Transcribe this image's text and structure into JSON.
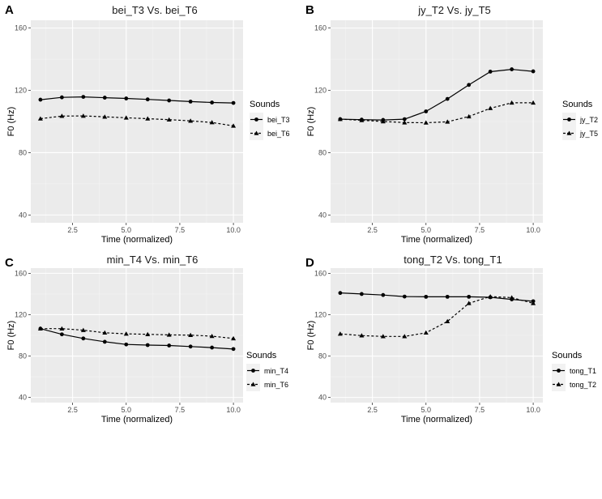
{
  "chart_data": [
    {
      "type": "line",
      "panel_label": "A",
      "title": "bei_T3 Vs. bei_T6",
      "xlabel": "Time (normalized)",
      "ylabel": "F0 (Hz)",
      "xlim": [
        0.55,
        10.45
      ],
      "ylim": [
        35,
        165
      ],
      "xticks": [
        2.5,
        5.0,
        7.5,
        10.0
      ],
      "xtick_labels": [
        "2.5",
        "5.0",
        "7.5",
        "10.0"
      ],
      "yticks": [
        40,
        80,
        120,
        160
      ],
      "ytick_labels": [
        "40",
        "80",
        "120",
        "160"
      ],
      "legend_title": "Sounds",
      "x": [
        1,
        2,
        3,
        4,
        5,
        6,
        7,
        8,
        9,
        10
      ],
      "series": [
        {
          "name": "bei_T3",
          "style": "solid",
          "marker": "circle",
          "values": [
            114,
            115.5,
            115.8,
            115.3,
            114.8,
            114.2,
            113.5,
            112.8,
            112.2,
            111.9
          ]
        },
        {
          "name": "bei_T6",
          "style": "dashed",
          "marker": "triangle",
          "values": [
            101.8,
            103.5,
            103.6,
            103,
            102.4,
            101.8,
            101.2,
            100.4,
            99.4,
            97.2
          ]
        }
      ]
    },
    {
      "type": "line",
      "panel_label": "B",
      "title": "jy_T2 Vs. jy_T5",
      "xlabel": "Time (normalized)",
      "ylabel": "F0 (Hz)",
      "xlim": [
        0.55,
        10.45
      ],
      "ylim": [
        35,
        165
      ],
      "xticks": [
        2.5,
        5.0,
        7.5,
        10.0
      ],
      "xtick_labels": [
        "2.5",
        "5.0",
        "7.5",
        "10.0"
      ],
      "yticks": [
        40,
        80,
        120,
        160
      ],
      "ytick_labels": [
        "40",
        "80",
        "120",
        "160"
      ],
      "legend_title": "Sounds",
      "x": [
        1,
        2,
        3,
        4,
        5,
        6,
        7,
        8,
        9,
        10
      ],
      "series": [
        {
          "name": "jy_T2",
          "style": "solid",
          "marker": "circle",
          "values": [
            101.5,
            101.2,
            101,
            101.5,
            106.5,
            114.5,
            123.5,
            132,
            133.5,
            132.2
          ]
        },
        {
          "name": "jy_T5",
          "style": "dashed",
          "marker": "triangle",
          "values": [
            101.5,
            100.8,
            100,
            99.3,
            99.2,
            99.8,
            103.2,
            108.5,
            112,
            112
          ]
        }
      ]
    },
    {
      "type": "line",
      "panel_label": "C",
      "title": "min_T4 Vs. min_T6",
      "xlabel": "Time (normalized)",
      "ylabel": "F0 (Hz)",
      "xlim": [
        0.55,
        10.45
      ],
      "ylim": [
        35,
        165
      ],
      "xticks": [
        2.5,
        5.0,
        7.5,
        10.0
      ],
      "xtick_labels": [
        "2.5",
        "5.0",
        "7.5",
        "10.0"
      ],
      "yticks": [
        40,
        80,
        120,
        160
      ],
      "ytick_labels": [
        "40",
        "80",
        "120",
        "160"
      ],
      "legend_title": "Sounds",
      "x": [
        1,
        2,
        3,
        4,
        5,
        6,
        7,
        8,
        9,
        10
      ],
      "series": [
        {
          "name": "min_T4",
          "style": "solid",
          "marker": "circle",
          "values": [
            106.5,
            101,
            97,
            93.8,
            91.2,
            90.6,
            90.2,
            89.2,
            88.2,
            86.8
          ]
        },
        {
          "name": "min_T6",
          "style": "dashed",
          "marker": "triangle",
          "values": [
            106.5,
            106.5,
            105,
            102.5,
            101.5,
            101,
            100.5,
            100.2,
            99.2,
            97
          ]
        }
      ]
    },
    {
      "type": "line",
      "panel_label": "D",
      "title": "tong_T2 Vs. tong_T1",
      "xlabel": "Time (normalized)",
      "ylabel": "F0 (Hz)",
      "xlim": [
        0.55,
        10.45
      ],
      "ylim": [
        35,
        165
      ],
      "xticks": [
        2.5,
        5.0,
        7.5,
        10.0
      ],
      "xtick_labels": [
        "2.5",
        "5.0",
        "7.5",
        "10.0"
      ],
      "yticks": [
        40,
        80,
        120,
        160
      ],
      "ytick_labels": [
        "40",
        "80",
        "120",
        "160"
      ],
      "legend_title": "Sounds",
      "x": [
        1,
        2,
        3,
        4,
        5,
        6,
        7,
        8,
        9,
        10
      ],
      "series": [
        {
          "name": "tong_T1",
          "style": "solid",
          "marker": "circle",
          "values": [
            141,
            140,
            139,
            137.5,
            137.3,
            137.3,
            137.3,
            136.8,
            134.8,
            133
          ]
        },
        {
          "name": "tong_T2",
          "style": "dashed",
          "marker": "triangle",
          "values": [
            101.5,
            99.8,
            99,
            99,
            102.5,
            113.5,
            131,
            137.5,
            136.5,
            131
          ]
        }
      ]
    }
  ],
  "colors": {
    "page_background": "#ffffff",
    "panel_background": "#ebebeb",
    "major_grid": "#ffffff",
    "minor_grid": "#f4f4f4",
    "series_stroke": "#000000",
    "axis_text": "#4d4d4d",
    "title_text": "#1a1a1a"
  }
}
